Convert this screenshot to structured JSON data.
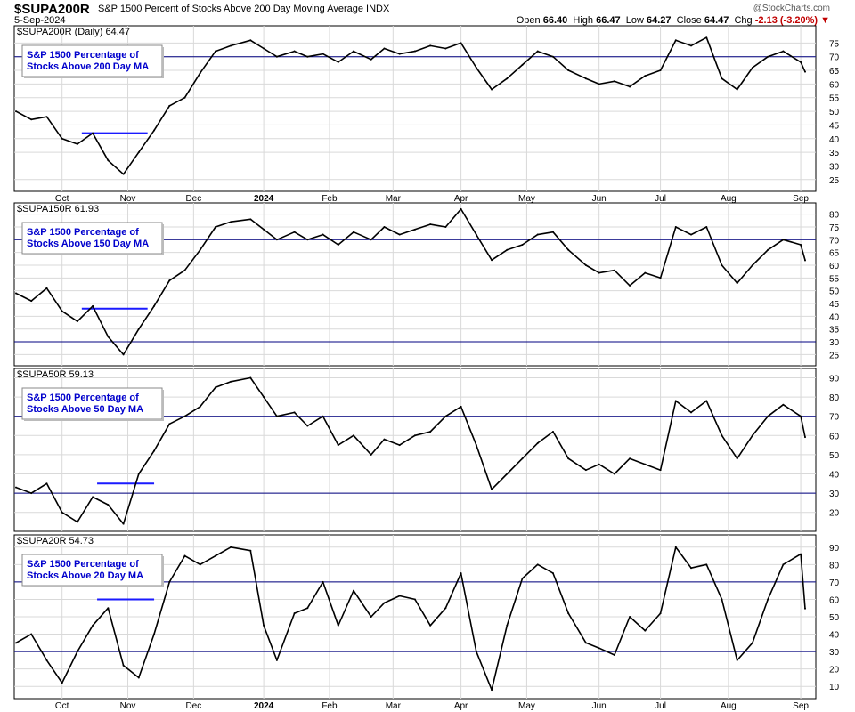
{
  "header": {
    "symbol": "$SUPA200R",
    "description": "S&P 1500 Percent of Stocks Above 200 Day Moving Average INDX",
    "date": "5-Sep-2024",
    "brand": "@StockCharts.com",
    "quote": {
      "open_label": "Open",
      "open": "66.40",
      "high_label": "High",
      "high": "66.47",
      "low_label": "Low",
      "low": "64.27",
      "close_label": "Close",
      "close": "64.47",
      "chg_label": "Chg",
      "chg": "-2.13 (-3.20%)"
    }
  },
  "colors": {
    "line": "#000000",
    "reference_line": "#000080",
    "annotation_line": "#1a1aff",
    "label_text": "#0000cc",
    "grid": "#d9d9d9",
    "change_negative": "#c00000"
  },
  "chart_data": [
    {
      "type": "line",
      "legend": "$SUPA200R (Daily) 64.47",
      "annotation": [
        "S&P 1500 Percentage of",
        "Stocks Above 200 Day MA"
      ],
      "ylim": [
        22,
        80
      ],
      "yticks": [
        25,
        30,
        35,
        40,
        45,
        50,
        55,
        60,
        65,
        70,
        75
      ],
      "reference_lines": [
        70,
        30
      ],
      "highlight_segment": {
        "x": [
          "2023-10-11",
          "2023-11-10"
        ],
        "y": 42
      },
      "x": [
        "2023-09-11",
        "2023-09-18",
        "2023-09-25",
        "2023-10-02",
        "2023-10-09",
        "2023-10-16",
        "2023-10-23",
        "2023-10-30",
        "2023-11-06",
        "2023-11-13",
        "2023-11-20",
        "2023-11-27",
        "2023-12-04",
        "2023-12-11",
        "2023-12-18",
        "2023-12-27",
        "2024-01-02",
        "2024-01-08",
        "2024-01-16",
        "2024-01-22",
        "2024-01-29",
        "2024-02-05",
        "2024-02-12",
        "2024-02-20",
        "2024-02-26",
        "2024-03-04",
        "2024-03-11",
        "2024-03-18",
        "2024-03-25",
        "2024-04-01",
        "2024-04-08",
        "2024-04-15",
        "2024-04-22",
        "2024-04-29",
        "2024-05-06",
        "2024-05-13",
        "2024-05-20",
        "2024-05-28",
        "2024-06-03",
        "2024-06-10",
        "2024-06-17",
        "2024-06-24",
        "2024-07-01",
        "2024-07-08",
        "2024-07-15",
        "2024-07-22",
        "2024-07-29",
        "2024-08-05",
        "2024-08-12",
        "2024-08-19",
        "2024-08-26",
        "2024-09-03",
        "2024-09-05"
      ],
      "y": [
        50,
        47,
        48,
        40,
        38,
        42,
        32,
        27,
        35,
        43,
        52,
        55,
        64,
        72,
        74,
        76,
        73,
        70,
        72,
        70,
        71,
        68,
        72,
        69,
        73,
        71,
        72,
        74,
        73,
        75,
        66,
        58,
        62,
        67,
        72,
        70,
        65,
        62,
        60,
        61,
        59,
        63,
        65,
        76,
        74,
        77,
        62,
        58,
        66,
        70,
        72,
        68,
        64.47
      ],
      "xticks": [
        {
          "label": "Oct",
          "date": "2023-10-02"
        },
        {
          "label": "Nov",
          "date": "2023-11-01"
        },
        {
          "label": "Dec",
          "date": "2023-12-01"
        },
        {
          "label": "2024",
          "date": "2024-01-02",
          "bold": true
        },
        {
          "label": "Feb",
          "date": "2024-02-01"
        },
        {
          "label": "Mar",
          "date": "2024-03-01"
        },
        {
          "label": "Apr",
          "date": "2024-04-01"
        },
        {
          "label": "May",
          "date": "2024-05-01"
        },
        {
          "label": "Jun",
          "date": "2024-06-03"
        },
        {
          "label": "Jul",
          "date": "2024-07-01"
        },
        {
          "label": "Aug",
          "date": "2024-08-01"
        },
        {
          "label": "Sep",
          "date": "2024-09-03"
        }
      ]
    },
    {
      "type": "line",
      "legend": "$SUPA150R 61.93",
      "annotation": [
        "S&P 1500 Percentage of",
        "Stocks Above 150 Day MA"
      ],
      "ylim": [
        22,
        83
      ],
      "yticks": [
        25,
        30,
        35,
        40,
        45,
        50,
        55,
        60,
        65,
        70,
        75,
        80
      ],
      "reference_lines": [
        70,
        30
      ],
      "highlight_segment": {
        "x": [
          "2023-10-11",
          "2023-11-10"
        ],
        "y": 43
      },
      "x": [
        "2023-09-11",
        "2023-09-18",
        "2023-09-25",
        "2023-10-02",
        "2023-10-09",
        "2023-10-16",
        "2023-10-23",
        "2023-10-30",
        "2023-11-06",
        "2023-11-13",
        "2023-11-20",
        "2023-11-27",
        "2023-12-04",
        "2023-12-11",
        "2023-12-18",
        "2023-12-27",
        "2024-01-02",
        "2024-01-08",
        "2024-01-16",
        "2024-01-22",
        "2024-01-29",
        "2024-02-05",
        "2024-02-12",
        "2024-02-20",
        "2024-02-26",
        "2024-03-04",
        "2024-03-11",
        "2024-03-18",
        "2024-03-25",
        "2024-04-01",
        "2024-04-08",
        "2024-04-15",
        "2024-04-22",
        "2024-04-29",
        "2024-05-06",
        "2024-05-13",
        "2024-05-20",
        "2024-05-28",
        "2024-06-03",
        "2024-06-10",
        "2024-06-17",
        "2024-06-24",
        "2024-07-01",
        "2024-07-08",
        "2024-07-15",
        "2024-07-22",
        "2024-07-29",
        "2024-08-05",
        "2024-08-12",
        "2024-08-19",
        "2024-08-26",
        "2024-09-03",
        "2024-09-05"
      ],
      "y": [
        49,
        46,
        51,
        42,
        38,
        44,
        32,
        25,
        35,
        44,
        54,
        58,
        66,
        75,
        77,
        78,
        74,
        70,
        73,
        70,
        72,
        68,
        73,
        70,
        75,
        72,
        74,
        76,
        75,
        82,
        72,
        62,
        66,
        68,
        72,
        73,
        66,
        60,
        57,
        58,
        52,
        57,
        55,
        75,
        72,
        75,
        60,
        53,
        60,
        66,
        70,
        68,
        61.93
      ],
      "xticks": []
    },
    {
      "type": "line",
      "legend": "$SUPA50R 59.13",
      "annotation": [
        "S&P 1500 Percentage of",
        "Stocks Above 50 Day MA"
      ],
      "ylim": [
        12,
        93
      ],
      "yticks": [
        20,
        30,
        40,
        50,
        60,
        70,
        80,
        90
      ],
      "reference_lines": [
        70,
        30
      ],
      "highlight_segment": {
        "x": [
          "2023-10-18",
          "2023-11-13"
        ],
        "y": 35
      },
      "x": [
        "2023-09-11",
        "2023-09-18",
        "2023-09-25",
        "2023-10-02",
        "2023-10-09",
        "2023-10-16",
        "2023-10-23",
        "2023-10-30",
        "2023-11-06",
        "2023-11-13",
        "2023-11-20",
        "2023-11-27",
        "2023-12-04",
        "2023-12-11",
        "2023-12-18",
        "2023-12-27",
        "2024-01-02",
        "2024-01-08",
        "2024-01-16",
        "2024-01-22",
        "2024-01-29",
        "2024-02-05",
        "2024-02-12",
        "2024-02-20",
        "2024-02-26",
        "2024-03-04",
        "2024-03-11",
        "2024-03-18",
        "2024-03-25",
        "2024-04-01",
        "2024-04-08",
        "2024-04-15",
        "2024-04-22",
        "2024-04-29",
        "2024-05-06",
        "2024-05-13",
        "2024-05-20",
        "2024-05-28",
        "2024-06-03",
        "2024-06-10",
        "2024-06-17",
        "2024-06-24",
        "2024-07-01",
        "2024-07-08",
        "2024-07-15",
        "2024-07-22",
        "2024-07-29",
        "2024-08-05",
        "2024-08-12",
        "2024-08-19",
        "2024-08-26",
        "2024-09-03",
        "2024-09-05"
      ],
      "y": [
        33,
        30,
        35,
        20,
        15,
        28,
        24,
        14,
        40,
        52,
        66,
        70,
        75,
        85,
        88,
        90,
        80,
        70,
        72,
        65,
        70,
        55,
        60,
        50,
        58,
        55,
        60,
        62,
        70,
        75,
        55,
        32,
        40,
        48,
        56,
        62,
        48,
        42,
        45,
        40,
        48,
        45,
        42,
        78,
        72,
        78,
        60,
        48,
        60,
        70,
        76,
        70,
        59.13
      ],
      "xticks": []
    },
    {
      "type": "line",
      "legend": "$SUPA20R 54.73",
      "annotation": [
        "S&P 1500 Percentage of",
        "Stocks Above 20 Day MA"
      ],
      "ylim": [
        5,
        95
      ],
      "yticks": [
        10,
        20,
        30,
        40,
        50,
        60,
        70,
        80,
        90
      ],
      "reference_lines": [
        70,
        30
      ],
      "highlight_segment": {
        "x": [
          "2023-10-18",
          "2023-11-13"
        ],
        "y": 60
      },
      "x": [
        "2023-09-11",
        "2023-09-18",
        "2023-09-25",
        "2023-10-02",
        "2023-10-09",
        "2023-10-16",
        "2023-10-23",
        "2023-10-30",
        "2023-11-06",
        "2023-11-13",
        "2023-11-20",
        "2023-11-27",
        "2023-12-04",
        "2023-12-11",
        "2023-12-18",
        "2023-12-27",
        "2024-01-02",
        "2024-01-08",
        "2024-01-16",
        "2024-01-22",
        "2024-01-29",
        "2024-02-05",
        "2024-02-12",
        "2024-02-20",
        "2024-02-26",
        "2024-03-04",
        "2024-03-11",
        "2024-03-18",
        "2024-03-25",
        "2024-04-01",
        "2024-04-08",
        "2024-04-15",
        "2024-04-22",
        "2024-04-29",
        "2024-05-06",
        "2024-05-13",
        "2024-05-20",
        "2024-05-28",
        "2024-06-03",
        "2024-06-10",
        "2024-06-17",
        "2024-06-24",
        "2024-07-01",
        "2024-07-08",
        "2024-07-15",
        "2024-07-22",
        "2024-07-29",
        "2024-08-05",
        "2024-08-12",
        "2024-08-19",
        "2024-08-26",
        "2024-09-03",
        "2024-09-05"
      ],
      "y": [
        35,
        40,
        25,
        12,
        30,
        45,
        55,
        22,
        15,
        40,
        70,
        85,
        80,
        85,
        90,
        88,
        45,
        25,
        52,
        55,
        70,
        45,
        65,
        50,
        58,
        62,
        60,
        45,
        55,
        75,
        30,
        8,
        45,
        72,
        80,
        75,
        52,
        35,
        32,
        28,
        50,
        42,
        52,
        90,
        78,
        80,
        60,
        25,
        35,
        60,
        80,
        86,
        54.73
      ],
      "xticks": [
        {
          "label": "Oct",
          "date": "2023-10-02"
        },
        {
          "label": "Nov",
          "date": "2023-11-01"
        },
        {
          "label": "Dec",
          "date": "2023-12-01"
        },
        {
          "label": "2024",
          "date": "2024-01-02",
          "bold": true
        },
        {
          "label": "Feb",
          "date": "2024-02-01"
        },
        {
          "label": "Mar",
          "date": "2024-03-01"
        },
        {
          "label": "Apr",
          "date": "2024-04-01"
        },
        {
          "label": "May",
          "date": "2024-05-01"
        },
        {
          "label": "Jun",
          "date": "2024-06-03"
        },
        {
          "label": "Jul",
          "date": "2024-07-01"
        },
        {
          "label": "Aug",
          "date": "2024-08-01"
        },
        {
          "label": "Sep",
          "date": "2024-09-03"
        }
      ]
    }
  ]
}
